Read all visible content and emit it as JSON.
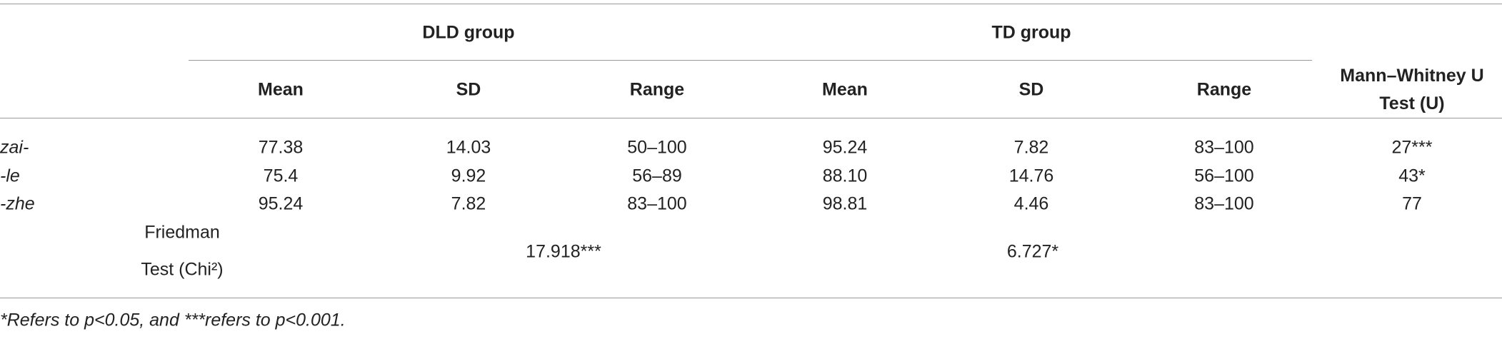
{
  "table": {
    "group_headers": [
      "DLD group",
      "TD group"
    ],
    "test_header": "Mann–Whitney U Test (U)",
    "columns": [
      "Mean",
      "SD",
      "Range",
      "Mean",
      "SD",
      "Range"
    ],
    "rows": [
      {
        "label": "zai-",
        "cells": [
          "77.38",
          "14.03",
          "50–100",
          "95.24",
          "7.82",
          "83–100",
          "27***"
        ]
      },
      {
        "label": "-le",
        "cells": [
          "75.4",
          "9.92",
          "56–89",
          "88.10",
          "14.76",
          "56–100",
          "43*"
        ]
      },
      {
        "label": "-zhe",
        "cells": [
          "95.24",
          "7.82",
          "83–100",
          "98.81",
          "4.46",
          "83–100",
          "77"
        ]
      }
    ],
    "friedman": {
      "label_lines": [
        "Friedman",
        "Test (Chi²)"
      ],
      "values": [
        "17.918***",
        "6.727*"
      ]
    },
    "footnote": "*Refers to p<0.05, and ***refers to p<0.001."
  }
}
